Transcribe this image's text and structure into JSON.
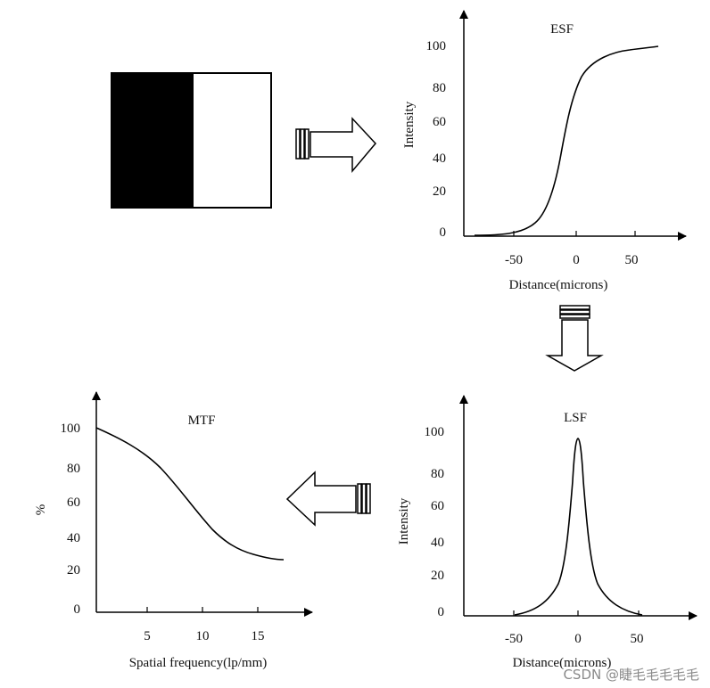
{
  "watermark": "CSDN @睫毛毛毛毛毛",
  "esf": {
    "title": "ESF",
    "ylabel": "Intensity",
    "xlabel": "Distance(microns)",
    "xticks": [
      "-50",
      "0",
      "50"
    ],
    "yticks": [
      "0",
      "20",
      "40",
      "60",
      "80",
      "100"
    ]
  },
  "lsf": {
    "title": "LSF",
    "ylabel": "Intensity",
    "xlabel": "Distance(microns)",
    "xticks": [
      "-50",
      "0",
      "50"
    ],
    "yticks": [
      "0",
      "20",
      "40",
      "60",
      "80",
      "100"
    ]
  },
  "mtf": {
    "title": "MTF",
    "ylabel": "%",
    "xlabel": "Spatial frequency(lp/mm)",
    "xticks": [
      "5",
      "10",
      "15"
    ],
    "yticks": [
      "0",
      "20",
      "40",
      "60",
      "80",
      "100"
    ]
  }
}
